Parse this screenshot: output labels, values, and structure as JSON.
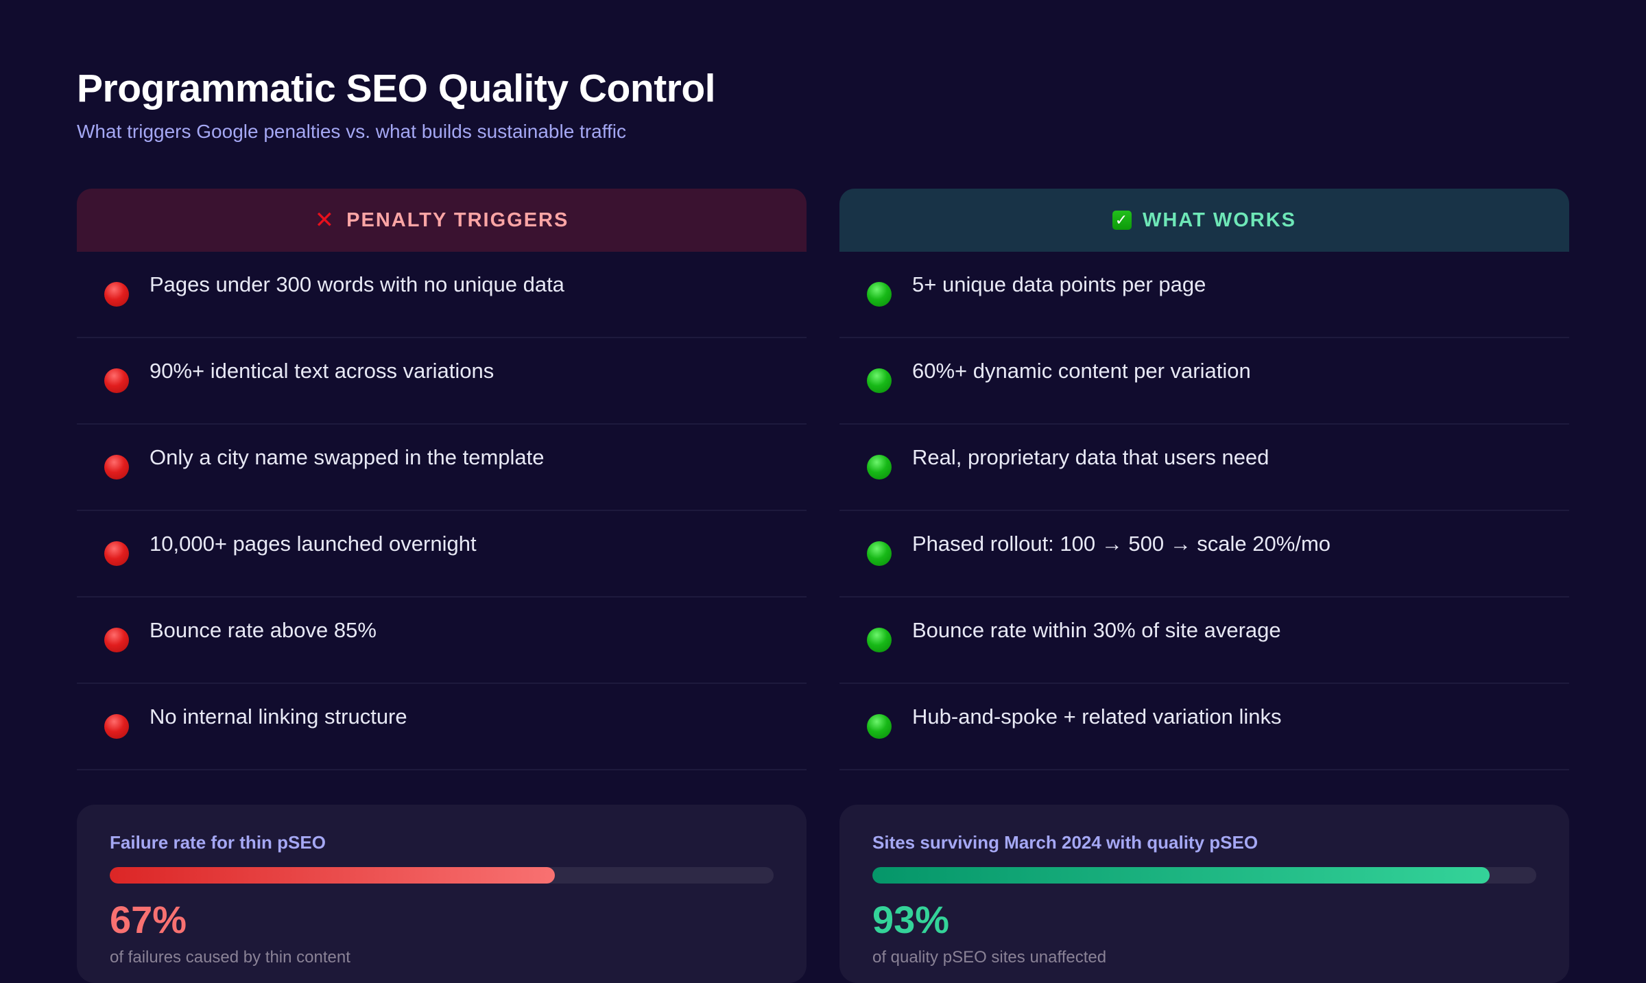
{
  "header": {
    "title": "Programmatic SEO Quality Control",
    "subtitle": "What triggers Google penalties vs. what builds sustainable traffic"
  },
  "columns": {
    "penalty": {
      "icon": "✕",
      "icon_name": "x-icon",
      "title": "PENALTY TRIGGERS",
      "accent": "#fca5a5",
      "items": [
        "Pages under 300 words with no unique data",
        "90%+ identical text across variations",
        "Only a city name swapped in the template",
        "10,000+ pages launched overnight",
        "Bounce rate above 85%",
        "No internal linking structure"
      ]
    },
    "works": {
      "icon": "✓",
      "icon_name": "check-icon",
      "title": "WHAT WORKS",
      "accent": "#6ee7b7",
      "items": [
        "5+ unique data points per page",
        "60%+ dynamic content per variation",
        "Real, proprietary data that users need",
        "Phased rollout: 100 → 500 → scale 20%/mo",
        "Bounce rate within 30% of site average",
        "Hub-and-spoke + related variation links"
      ]
    }
  },
  "stats": {
    "failure": {
      "label": "Failure rate for thin pSEO",
      "value": "67%",
      "percent": 67,
      "description": "of failures caused by thin content",
      "color": "#f87171"
    },
    "survival": {
      "label": "Sites surviving March 2024 with quality pSEO",
      "value": "93%",
      "percent": 93,
      "description": "of quality pSEO sites unaffected",
      "color": "#34d399"
    }
  }
}
